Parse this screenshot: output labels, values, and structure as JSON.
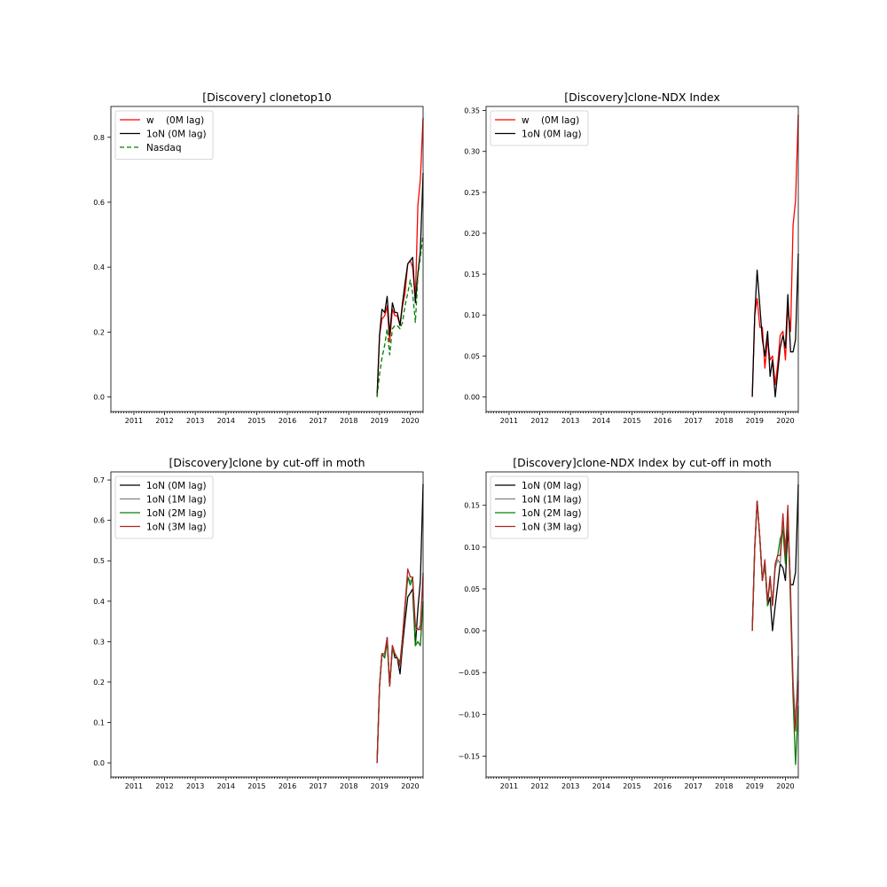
{
  "chart_data": [
    {
      "type": "line",
      "title": "[Discovery] clonetop10",
      "xlim": [
        2010.25,
        2020.42
      ],
      "ylim": [
        -0.045,
        0.895
      ],
      "xticks": [
        2011,
        2012,
        2013,
        2014,
        2015,
        2016,
        2017,
        2018,
        2019,
        2020
      ],
      "yticks": [
        0.0,
        0.2,
        0.4,
        0.6,
        0.8
      ],
      "ytick_labels": [
        "0.0",
        "0.2",
        "0.4",
        "0.6",
        "0.8"
      ],
      "legend": "upper-left",
      "x": [
        2018.92,
        2019.0,
        2019.08,
        2019.17,
        2019.25,
        2019.33,
        2019.42,
        2019.5,
        2019.58,
        2019.67,
        2019.75,
        2019.83,
        2019.92,
        2020.0,
        2020.08,
        2020.17,
        2020.25,
        2020.33,
        2020.42
      ],
      "series": [
        {
          "name": "w    (0M lag)",
          "color": "#ff0000",
          "dash": "solid",
          "values": [
            0.0,
            0.19,
            0.24,
            0.25,
            0.28,
            0.17,
            0.27,
            0.25,
            0.25,
            0.22,
            0.28,
            0.32,
            0.41,
            0.42,
            0.4,
            0.3,
            0.59,
            0.67,
            0.86
          ]
        },
        {
          "name": "1oN (0M lag)",
          "color": "#000000",
          "dash": "solid",
          "values": [
            0.0,
            0.19,
            0.27,
            0.26,
            0.31,
            0.19,
            0.29,
            0.26,
            0.26,
            0.22,
            0.29,
            0.35,
            0.41,
            0.42,
            0.43,
            0.29,
            0.38,
            0.45,
            0.69
          ]
        },
        {
          "name": "Nasdaq",
          "color": "#008000",
          "dash": "dashed",
          "values": [
            0.0,
            0.07,
            0.12,
            0.16,
            0.21,
            0.13,
            0.21,
            0.22,
            0.22,
            0.21,
            0.23,
            0.28,
            0.32,
            0.36,
            0.32,
            0.23,
            0.37,
            0.43,
            0.5
          ]
        }
      ]
    },
    {
      "type": "line",
      "title": "[Discovery]clone-NDX Index",
      "xlim": [
        2010.25,
        2020.42
      ],
      "ylim": [
        -0.018,
        0.355
      ],
      "xticks": [
        2011,
        2012,
        2013,
        2014,
        2015,
        2016,
        2017,
        2018,
        2019,
        2020
      ],
      "yticks": [
        0.0,
        0.05,
        0.1,
        0.15,
        0.2,
        0.25,
        0.3,
        0.35
      ],
      "ytick_labels": [
        "0.00",
        "0.05",
        "0.10",
        "0.15",
        "0.20",
        "0.25",
        "0.30",
        "0.35"
      ],
      "legend": "upper-left",
      "x": [
        2018.92,
        2019.0,
        2019.08,
        2019.17,
        2019.25,
        2019.33,
        2019.42,
        2019.5,
        2019.58,
        2019.67,
        2019.75,
        2019.83,
        2019.92,
        2020.0,
        2020.08,
        2020.17,
        2020.25,
        2020.33,
        2020.42
      ],
      "series": [
        {
          "name": "w    (0M lag)",
          "color": "#ff0000",
          "dash": "solid",
          "values": [
            0.0,
            0.1,
            0.12,
            0.085,
            0.085,
            0.035,
            0.07,
            0.045,
            0.05,
            0.015,
            0.04,
            0.075,
            0.08,
            0.045,
            0.11,
            0.08,
            0.21,
            0.24,
            0.345
          ]
        },
        {
          "name": "1oN (0M lag)",
          "color": "#000000",
          "dash": "solid",
          "values": [
            0.0,
            0.1,
            0.155,
            0.11,
            0.07,
            0.05,
            0.08,
            0.025,
            0.045,
            0.0,
            0.03,
            0.06,
            0.075,
            0.06,
            0.125,
            0.055,
            0.055,
            0.07,
            0.175
          ]
        }
      ]
    },
    {
      "type": "line",
      "title": "[Discovery]clone by cut-off in moth",
      "xlim": [
        2010.25,
        2020.42
      ],
      "ylim": [
        -0.035,
        0.72
      ],
      "xticks": [
        2011,
        2012,
        2013,
        2014,
        2015,
        2016,
        2017,
        2018,
        2019,
        2020
      ],
      "yticks": [
        0.0,
        0.1,
        0.2,
        0.3,
        0.4,
        0.5,
        0.6,
        0.7
      ],
      "ytick_labels": [
        "0.0",
        "0.1",
        "0.2",
        "0.3",
        "0.4",
        "0.5",
        "0.6",
        "0.7"
      ],
      "legend": "upper-left",
      "x": [
        2018.92,
        2019.0,
        2019.08,
        2019.17,
        2019.25,
        2019.33,
        2019.42,
        2019.5,
        2019.58,
        2019.67,
        2019.75,
        2019.83,
        2019.92,
        2020.0,
        2020.08,
        2020.17,
        2020.25,
        2020.33,
        2020.42
      ],
      "series": [
        {
          "name": "1oN (0M lag)",
          "color": "#000000",
          "dash": "solid",
          "values": [
            0.0,
            0.19,
            0.27,
            0.26,
            0.31,
            0.19,
            0.29,
            0.26,
            0.26,
            0.22,
            0.29,
            0.35,
            0.41,
            0.42,
            0.43,
            0.29,
            0.38,
            0.45,
            0.69
          ]
        },
        {
          "name": "1oN (1M lag)",
          "color": "#808080",
          "dash": "solid",
          "values": [
            0.0,
            0.19,
            0.27,
            0.27,
            0.31,
            0.19,
            0.29,
            0.27,
            0.26,
            0.24,
            0.31,
            0.38,
            0.46,
            0.45,
            0.45,
            0.33,
            0.33,
            0.34,
            0.46
          ]
        },
        {
          "name": "1oN (2M lag)",
          "color": "#008000",
          "dash": "solid",
          "values": [
            0.0,
            0.19,
            0.27,
            0.26,
            0.3,
            0.19,
            0.28,
            0.27,
            0.26,
            0.25,
            0.31,
            0.39,
            0.46,
            0.44,
            0.46,
            0.29,
            0.3,
            0.29,
            0.4
          ]
        },
        {
          "name": "1oN (3M lag)",
          "color": "#b22222",
          "dash": "solid",
          "values": [
            0.0,
            0.19,
            0.27,
            0.27,
            0.31,
            0.19,
            0.29,
            0.27,
            0.26,
            0.24,
            0.31,
            0.39,
            0.48,
            0.46,
            0.46,
            0.34,
            0.33,
            0.33,
            0.47
          ]
        }
      ]
    },
    {
      "type": "line",
      "title": "[Discovery]clone-NDX Index by cut-off in moth",
      "xlim": [
        2010.25,
        2020.42
      ],
      "ylim": [
        -0.175,
        0.19
      ],
      "xticks": [
        2011,
        2012,
        2013,
        2014,
        2015,
        2016,
        2017,
        2018,
        2019,
        2020
      ],
      "yticks": [
        -0.15,
        -0.1,
        -0.05,
        0.0,
        0.05,
        0.1,
        0.15
      ],
      "ytick_labels": [
        "−0.15",
        "−0.10",
        "−0.05",
        "0.00",
        "0.05",
        "0.10",
        "0.15"
      ],
      "legend": "upper-left",
      "x": [
        2018.92,
        2019.0,
        2019.08,
        2019.17,
        2019.25,
        2019.33,
        2019.42,
        2019.5,
        2019.58,
        2019.67,
        2019.75,
        2019.83,
        2019.92,
        2020.0,
        2020.08,
        2020.17,
        2020.25,
        2020.33,
        2020.42
      ],
      "series": [
        {
          "name": "1oN (0M lag)",
          "color": "#000000",
          "dash": "solid",
          "values": [
            0.0,
            0.1,
            0.155,
            0.11,
            0.06,
            0.08,
            0.03,
            0.04,
            0.0,
            0.03,
            0.055,
            0.08,
            0.075,
            0.06,
            0.125,
            0.055,
            0.055,
            0.07,
            0.175
          ]
        },
        {
          "name": "1oN (1M lag)",
          "color": "#808080",
          "dash": "solid",
          "values": [
            0.0,
            0.1,
            0.155,
            0.11,
            0.06,
            0.08,
            0.035,
            0.06,
            0.03,
            0.075,
            0.085,
            0.08,
            0.13,
            0.1,
            0.135,
            0.05,
            -0.06,
            -0.11,
            -0.03
          ]
        },
        {
          "name": "1oN (2M lag)",
          "color": "#008000",
          "dash": "solid",
          "values": [
            0.0,
            0.1,
            0.155,
            0.11,
            0.06,
            0.08,
            0.03,
            0.065,
            0.03,
            0.08,
            0.09,
            0.11,
            0.12,
            0.08,
            0.145,
            0.03,
            -0.08,
            -0.16,
            -0.09
          ]
        },
        {
          "name": "1oN (3M lag)",
          "color": "#b22222",
          "dash": "solid",
          "values": [
            0.0,
            0.1,
            0.155,
            0.11,
            0.06,
            0.085,
            0.035,
            0.065,
            0.03,
            0.08,
            0.09,
            0.09,
            0.14,
            0.09,
            0.15,
            0.04,
            -0.07,
            -0.12,
            -0.06
          ]
        }
      ]
    }
  ]
}
